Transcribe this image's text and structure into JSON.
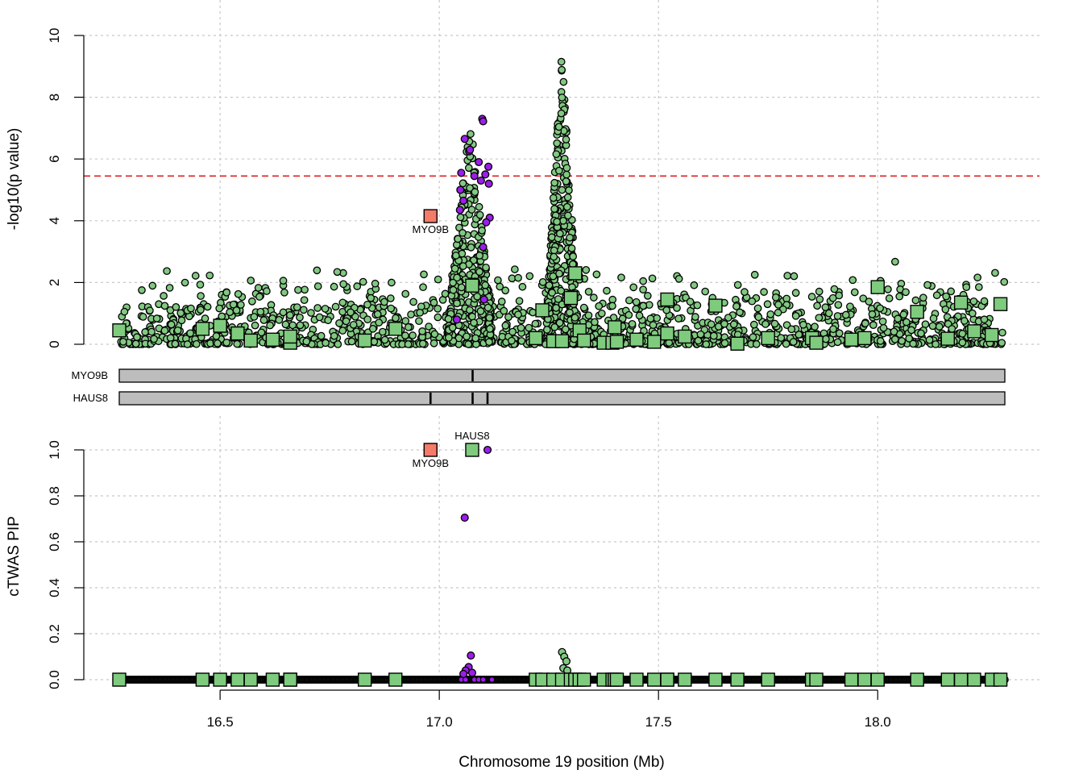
{
  "colors": {
    "snp_fill": "#82c882",
    "snp_highlight_fill": "#9b1de8",
    "gene_fill": "#7ecb7e",
    "gene_highlight_fill": "#f47a6a",
    "threshold": "#e02020",
    "gene_bar": "#bdbdbd"
  },
  "chart_data": [
    {
      "type": "scatter",
      "panel": "gwas",
      "xlabel": "Chromosome 19 position (Mb)",
      "ylabel": "-log10(p value)",
      "xlim": [
        16.22,
        18.42
      ],
      "ylim": [
        0,
        10
      ],
      "yticks": [
        0,
        2,
        4,
        6,
        8,
        10
      ],
      "ytick_labels": [
        "0",
        "2",
        "4",
        "6",
        "8",
        "10"
      ],
      "grid": true,
      "threshold": 5.45,
      "background_snps": {
        "x_range": [
          16.27,
          18.29
        ],
        "count": 1400,
        "typical_max": 2.0
      },
      "peaks": [
        {
          "x_center": 17.07,
          "x_spread": 0.05,
          "max": 7.4
        },
        {
          "x_center": 17.28,
          "x_spread": 0.035,
          "max": 9.7
        }
      ],
      "highlighted_snps": [
        {
          "x": 17.058,
          "y": 6.65
        },
        {
          "x": 17.068,
          "y": 6.25
        },
        {
          "x": 17.098,
          "y": 7.3
        },
        {
          "x": 17.1,
          "y": 7.22
        },
        {
          "x": 17.09,
          "y": 5.9
        },
        {
          "x": 17.112,
          "y": 5.75
        },
        {
          "x": 17.08,
          "y": 5.45
        },
        {
          "x": 17.105,
          "y": 5.5
        },
        {
          "x": 17.113,
          "y": 5.2
        },
        {
          "x": 17.048,
          "y": 5.0
        },
        {
          "x": 17.055,
          "y": 4.65
        },
        {
          "x": 17.047,
          "y": 4.35
        },
        {
          "x": 17.115,
          "y": 4.1
        },
        {
          "x": 17.107,
          "y": 3.95
        },
        {
          "x": 17.1,
          "y": 3.15
        },
        {
          "x": 17.102,
          "y": 1.45
        },
        {
          "x": 17.04,
          "y": 0.8
        },
        {
          "x": 17.07,
          "y": 6.3
        },
        {
          "x": 17.05,
          "y": 5.55
        },
        {
          "x": 17.095,
          "y": 5.3
        }
      ],
      "genes": {
        "x": [
          16.27,
          16.46,
          16.5,
          16.54,
          16.57,
          16.62,
          16.66,
          16.66,
          16.83,
          16.9,
          16.98,
          17.075,
          17.22,
          17.235,
          17.26,
          17.28,
          17.3,
          17.31,
          17.32,
          17.33,
          17.375,
          17.395,
          17.4,
          17.405,
          17.45,
          17.49,
          17.52,
          17.52,
          17.56,
          17.63,
          17.68,
          17.75,
          17.85,
          17.86,
          17.94,
          17.97,
          18.0,
          18.09,
          18.16,
          18.19,
          18.22,
          18.26,
          18.28
        ],
        "y": [
          0.45,
          0.5,
          0.6,
          0.35,
          0.12,
          0.15,
          0.05,
          0.25,
          0.12,
          0.5,
          4.15,
          1.9,
          0.2,
          1.1,
          0.1,
          0.1,
          1.5,
          2.3,
          0.45,
          0.12,
          0.05,
          0.05,
          0.55,
          0.08,
          0.15,
          0.08,
          0.35,
          1.45,
          0.25,
          1.25,
          0.02,
          0.2,
          0.2,
          0.05,
          0.15,
          0.2,
          1.85,
          1.05,
          0.18,
          1.35,
          0.42,
          0.3,
          1.3
        ],
        "highlight_index": 10
      },
      "annotations": [
        {
          "text": "MYO9B",
          "x": 16.98,
          "y": 4.15
        }
      ]
    },
    {
      "type": "gene_track",
      "panel": "genes",
      "tracks": [
        {
          "name": "MYO9B",
          "x_range": [
            16.27,
            18.29
          ],
          "ticks": [
            17.076
          ]
        },
        {
          "name": "HAUS8",
          "x_range": [
            16.27,
            18.29
          ],
          "ticks": [
            16.98,
            17.076,
            17.11
          ]
        }
      ]
    },
    {
      "type": "scatter",
      "panel": "pip",
      "xlabel": "Chromosome 19 position (Mb)",
      "ylabel": "cTWAS PIP",
      "xlim": [
        16.22,
        18.42
      ],
      "ylim": [
        0,
        1
      ],
      "yticks": [
        0,
        0.2,
        0.4,
        0.6,
        0.8,
        1.0
      ],
      "ytick_labels": [
        "0.0",
        "0.2",
        "0.4",
        "0.6",
        "0.8",
        "1.0"
      ],
      "xticks": [
        16.5,
        17.0,
        17.5,
        18.0
      ],
      "xtick_labels": [
        "16.5",
        "17.0",
        "17.5",
        "18.0"
      ],
      "grid": true,
      "snps_nonzero": [
        {
          "x": 17.11,
          "y": 1.0,
          "highlight": true
        },
        {
          "x": 17.058,
          "y": 0.705,
          "highlight": true
        },
        {
          "x": 17.072,
          "y": 0.105,
          "highlight": true
        },
        {
          "x": 17.067,
          "y": 0.055,
          "highlight": true
        },
        {
          "x": 17.06,
          "y": 0.04,
          "highlight": true
        },
        {
          "x": 17.055,
          "y": 0.025,
          "highlight": true
        },
        {
          "x": 17.075,
          "y": 0.03,
          "highlight": true
        },
        {
          "x": 17.28,
          "y": 0.12,
          "highlight": false
        },
        {
          "x": 17.285,
          "y": 0.1,
          "highlight": false
        },
        {
          "x": 17.29,
          "y": 0.08,
          "highlight": false
        },
        {
          "x": 17.283,
          "y": 0.05,
          "highlight": false
        },
        {
          "x": 17.292,
          "y": 0.04,
          "highlight": false
        }
      ],
      "genes": {
        "x": [
          16.27,
          16.46,
          16.5,
          16.54,
          16.57,
          16.62,
          16.66,
          16.66,
          16.83,
          16.9,
          16.98,
          17.075,
          17.22,
          17.235,
          17.26,
          17.28,
          17.3,
          17.31,
          17.32,
          17.33,
          17.375,
          17.395,
          17.4,
          17.405,
          17.45,
          17.49,
          17.52,
          17.52,
          17.56,
          17.63,
          17.68,
          17.75,
          17.85,
          17.86,
          17.94,
          17.97,
          18.0,
          18.09,
          18.16,
          18.19,
          18.22,
          18.26,
          18.28
        ],
        "y": [
          0,
          0,
          0,
          0,
          0,
          0,
          0,
          0,
          0,
          0,
          1.0,
          1.0,
          0,
          0,
          0,
          0,
          0,
          0,
          0,
          0,
          0,
          0,
          0,
          0,
          0,
          0,
          0,
          0,
          0,
          0,
          0,
          0,
          0,
          0,
          0,
          0,
          0,
          0,
          0,
          0,
          0,
          0,
          0
        ],
        "highlight_index": 10
      },
      "annotations": [
        {
          "text": "MYO9B",
          "x": 16.98,
          "y": 1.0,
          "position": "below"
        },
        {
          "text": "HAUS8",
          "x": 17.075,
          "y": 1.0,
          "position": "above"
        }
      ]
    }
  ]
}
